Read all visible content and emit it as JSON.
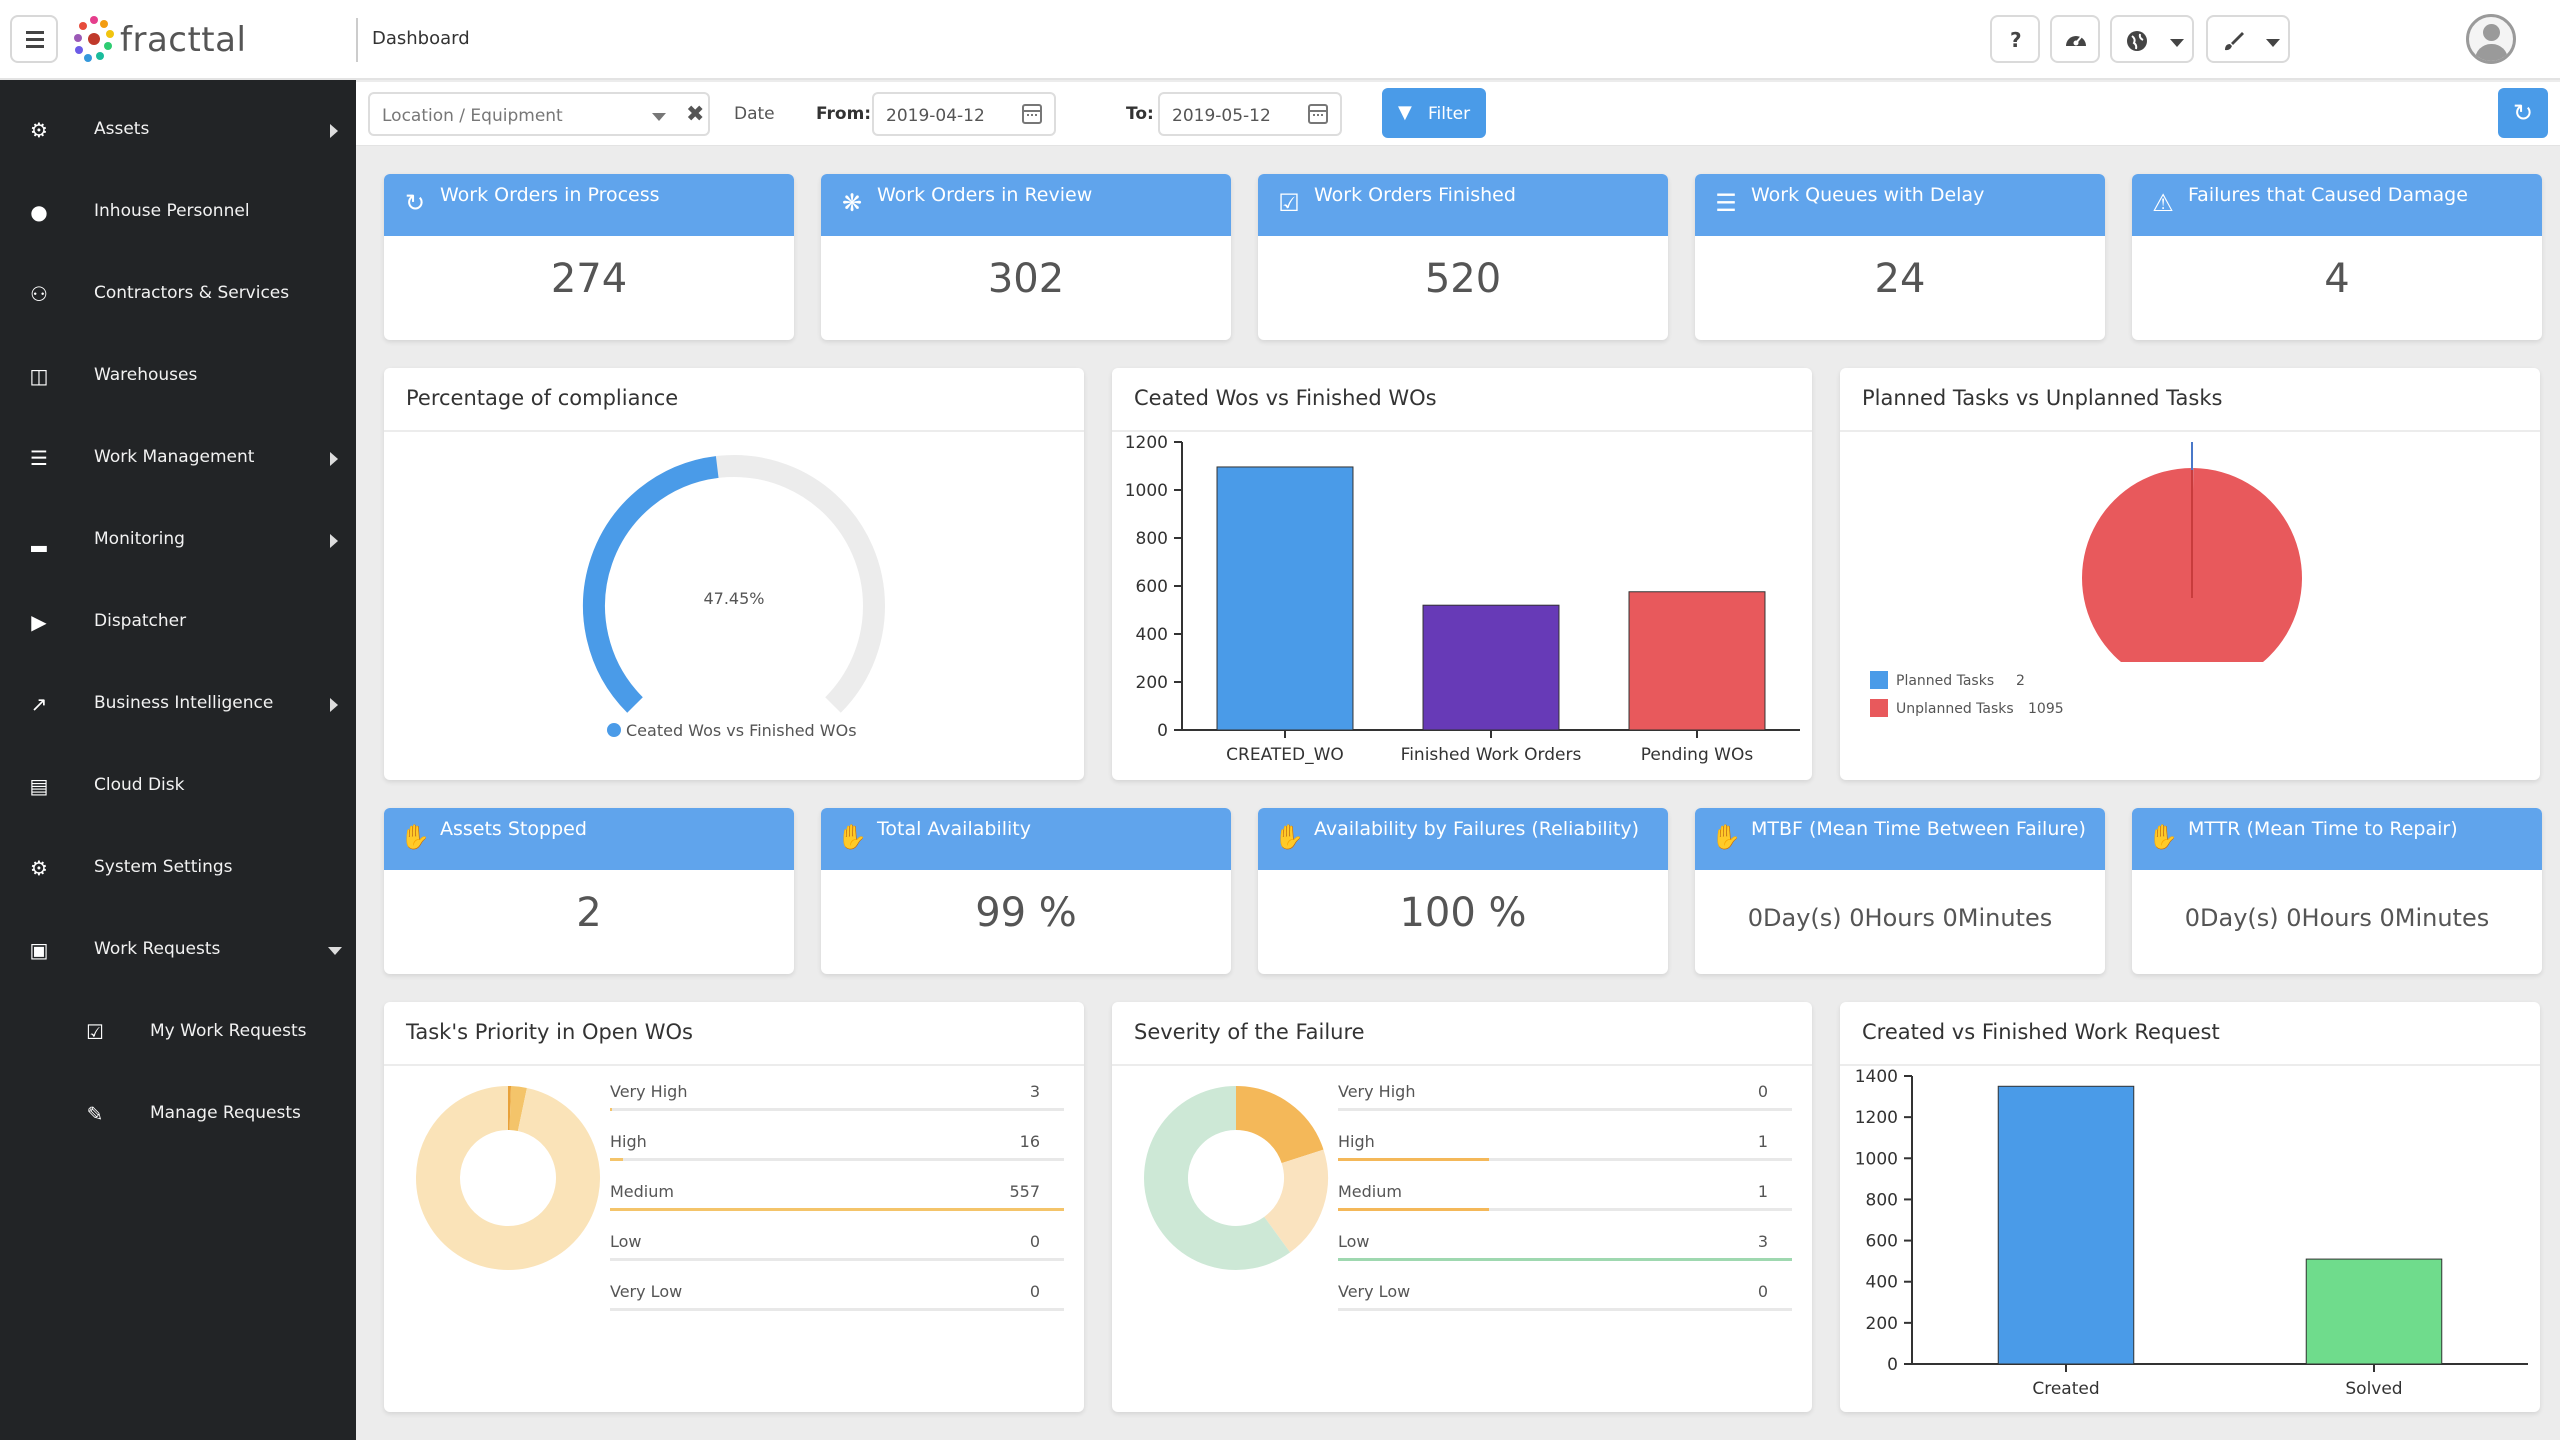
{
  "app": {
    "brand": "fracttal",
    "page_title": "Dashboard"
  },
  "header": {
    "help_glyph": "?",
    "icons": [
      "menu-icon",
      "help-icon",
      "dashboard-gauge-icon",
      "globe-icon",
      "brush-icon",
      "user-avatar-icon"
    ]
  },
  "sidebar": {
    "items": [
      {
        "label": "Assets",
        "icon": "assets-icon",
        "expandable": true
      },
      {
        "label": "Inhouse Personnel",
        "icon": "person-icon",
        "expandable": false
      },
      {
        "label": "Contractors & Services",
        "icon": "group-icon",
        "expandable": false
      },
      {
        "label": "Warehouses",
        "icon": "inbox-icon",
        "expandable": false
      },
      {
        "label": "Work Management",
        "icon": "list-icon",
        "expandable": true
      },
      {
        "label": "Monitoring",
        "icon": "signal-icon",
        "expandable": true
      },
      {
        "label": "Dispatcher",
        "icon": "play-circle-icon",
        "expandable": false
      },
      {
        "label": "Business Intelligence",
        "icon": "line-chart-icon",
        "expandable": true
      },
      {
        "label": "Cloud Disk",
        "icon": "disk-icon",
        "expandable": false
      },
      {
        "label": "System Settings",
        "icon": "gear-icon",
        "expandable": false
      },
      {
        "label": "Work Requests",
        "icon": "card-icon",
        "expandable": true,
        "expanded": true
      }
    ],
    "subitems": [
      {
        "label": "My Work Requests",
        "icon": "checkbox-icon"
      },
      {
        "label": "Manage Requests",
        "icon": "edit-icon"
      }
    ]
  },
  "filters": {
    "location_placeholder": "Location / Equipment",
    "date_label": "Date",
    "from_label": "From:",
    "from_value": "2019-04-12",
    "to_label": "To:",
    "to_value": "2019-05-12",
    "filter_button": "Filter"
  },
  "kpis_top": [
    {
      "title": "Work Orders in Process",
      "value": "274",
      "icon": "refresh-icon"
    },
    {
      "title": "Work Orders in Review",
      "value": "302",
      "icon": "spinner-icon"
    },
    {
      "title": "Work Orders Finished",
      "value": "520",
      "icon": "check-square-icon"
    },
    {
      "title": "Work Queues with Delay",
      "value": "24",
      "icon": "list-icon"
    },
    {
      "title": "Failures that Caused Damage",
      "value": "4",
      "icon": "warning-icon"
    }
  ],
  "kpis_bottom": [
    {
      "title": "Assets Stopped",
      "value": "2",
      "icon": "hand-icon"
    },
    {
      "title": "Total Availability",
      "value": "99 %",
      "icon": "hand-icon"
    },
    {
      "title": "Availability by Failures (Reliability)",
      "value": "100 %",
      "icon": "hand-icon"
    },
    {
      "title": "MTBF (Mean Time Between Failure)",
      "value": "0Day(s) 0Hours 0Minutes",
      "icon": "hand-icon"
    },
    {
      "title": "MTTR (Mean Time to Repair)",
      "value": "0Day(s) 0Hours 0Minutes",
      "icon": "hand-icon"
    }
  ],
  "panels": {
    "compliance": {
      "title": "Percentage of compliance",
      "center_label": "47.45%",
      "legend": "Ceated Wos vs Finished WOs"
    },
    "created_finished": {
      "title": "Ceated Wos vs Finished WOs"
    },
    "planned": {
      "title": "Planned Tasks vs Unplanned Tasks"
    },
    "priority": {
      "title": "Task's Priority in Open WOs"
    },
    "severity": {
      "title": "Severity of the Failure"
    },
    "work_request": {
      "title": "Created vs Finished Work Request"
    }
  },
  "chart_data": [
    {
      "type": "gauge",
      "title": "Percentage of compliance",
      "value": 47.45,
      "max": 100,
      "unit": "%",
      "series": [
        {
          "name": "Ceated Wos vs Finished WOs",
          "color": "#4a9be8"
        }
      ],
      "track_color": "#ececec"
    },
    {
      "type": "bar",
      "title": "Ceated Wos vs Finished WOs",
      "categories": [
        "CREATED_WO",
        "Finished Work Orders",
        "Pending WOs"
      ],
      "values": [
        1096,
        520,
        576
      ],
      "colors": [
        "#4a9be8",
        "#673ab7",
        "#e8595c"
      ],
      "ylim": [
        0,
        1200
      ],
      "yticks": [
        "1200",
        "1000",
        "800",
        "600",
        "400",
        "200",
        "0"
      ]
    },
    {
      "type": "pie",
      "title": "Planned Tasks vs Unplanned Tasks",
      "labels": [
        "Planned Tasks",
        "Unplanned Tasks"
      ],
      "values": [
        2,
        1095
      ],
      "colors": [
        "#4a9be8",
        "#e8595c"
      ]
    },
    {
      "type": "donut",
      "title": "Task's Priority in Open WOs",
      "labels": [
        "Very High",
        "High",
        "Medium",
        "Low",
        "Very Low"
      ],
      "values": [
        3,
        16,
        557,
        0,
        0
      ],
      "display_values": [
        "3",
        "16",
        "557",
        "0",
        "0"
      ],
      "colors": [
        "#e8a13a",
        "#f4c46a",
        "#fae3b8",
        "#cfe8d8",
        "#e6e6e6"
      ]
    },
    {
      "type": "donut",
      "title": "Severity of the Failure",
      "labels": [
        "Very High",
        "High",
        "Medium",
        "Low",
        "Very Low"
      ],
      "values": [
        0,
        1,
        1,
        3,
        0
      ],
      "display_values": [
        "0",
        "1",
        "1",
        "3",
        "0"
      ],
      "colors": [
        "#e8a13a",
        "#f4b859",
        "#fae3bf",
        "#cde8d6",
        "#e6e6e6"
      ]
    },
    {
      "type": "bar",
      "title": "Created vs Finished Work Request",
      "categories": [
        "Created",
        "Solved"
      ],
      "values": [
        1350,
        510
      ],
      "colors": [
        "#4a9be8",
        "#6fdc8c"
      ],
      "ylim": [
        0,
        1400
      ],
      "yticks": [
        "1400",
        "1200",
        "1000",
        "800",
        "600",
        "400",
        "200",
        "0"
      ]
    }
  ]
}
